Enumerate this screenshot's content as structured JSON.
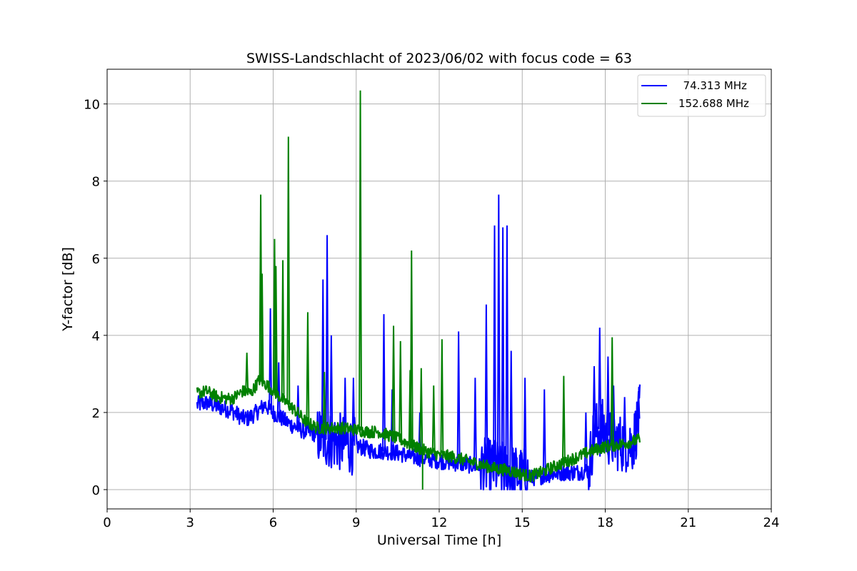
{
  "chart_data": {
    "type": "line",
    "title": "SWISS-Landschlacht of 2023/06/02 with focus code = 63",
    "xlabel": "Universal Time [h]",
    "ylabel": "Y-factor [dB]",
    "xlim": [
      0,
      24
    ],
    "ylim": [
      -0.5,
      10.9
    ],
    "xticks": [
      0,
      3,
      6,
      9,
      12,
      15,
      18,
      21,
      24
    ],
    "xtick_labels": [
      "0",
      "3",
      "6",
      "9",
      "12",
      "15",
      "18",
      "21",
      "24"
    ],
    "yticks": [
      0,
      2,
      4,
      6,
      8,
      10
    ],
    "ytick_labels": [
      "0",
      "2",
      "4",
      "6",
      "8",
      "10"
    ],
    "grid": true,
    "legend_position": "top-right",
    "series": [
      {
        "name": "  74.313 MHz",
        "color": "#0000ff",
        "x": [
          3.25,
          3.6,
          4.0,
          4.5,
          4.9,
          5.1,
          5.4,
          5.7,
          6.0,
          6.3,
          6.6,
          7.0,
          7.5,
          7.9,
          8.3,
          8.8,
          9.2,
          9.6,
          10.0,
          10.5,
          11.0,
          11.5,
          12.0,
          12.5,
          13.0,
          13.5,
          14.0,
          14.5,
          15.0,
          15.3,
          15.7,
          16.0,
          16.5,
          17.0,
          17.4,
          17.6,
          17.9,
          18.2,
          18.6,
          19.0,
          19.25
        ],
        "y": [
          2.2,
          2.25,
          2.15,
          2.05,
          1.85,
          1.85,
          2.0,
          2.2,
          2.0,
          1.85,
          1.7,
          1.55,
          1.45,
          1.3,
          1.25,
          1.15,
          1.1,
          1.0,
          1.0,
          0.95,
          0.85,
          0.8,
          0.75,
          0.7,
          0.65,
          0.6,
          0.55,
          0.45,
          0.35,
          0.3,
          0.35,
          0.4,
          0.45,
          0.45,
          0.5,
          1.5,
          1.6,
          1.3,
          1.2,
          1.2,
          2.0
        ],
        "spikes": [
          {
            "x": 5.9,
            "y": 4.7
          },
          {
            "x": 6.2,
            "y": 3.3
          },
          {
            "x": 6.9,
            "y": 2.7
          },
          {
            "x": 7.8,
            "y": 5.45
          },
          {
            "x": 7.95,
            "y": 6.6
          },
          {
            "x": 8.1,
            "y": 4.0
          },
          {
            "x": 8.6,
            "y": 2.9
          },
          {
            "x": 8.9,
            "y": 2.9
          },
          {
            "x": 10.0,
            "y": 4.55
          },
          {
            "x": 10.3,
            "y": 2.6
          },
          {
            "x": 11.3,
            "y": 2.0
          },
          {
            "x": 12.7,
            "y": 4.1
          },
          {
            "x": 13.3,
            "y": 2.9
          },
          {
            "x": 13.7,
            "y": 4.8
          },
          {
            "x": 14.0,
            "y": 6.85
          },
          {
            "x": 14.15,
            "y": 7.65
          },
          {
            "x": 14.3,
            "y": 6.8
          },
          {
            "x": 14.45,
            "y": 6.85
          },
          {
            "x": 14.6,
            "y": 3.6
          },
          {
            "x": 15.1,
            "y": 2.9
          },
          {
            "x": 15.8,
            "y": 2.6
          },
          {
            "x": 17.3,
            "y": 2.0
          },
          {
            "x": 17.6,
            "y": 3.2
          },
          {
            "x": 17.8,
            "y": 4.2
          },
          {
            "x": 18.1,
            "y": 3.45
          },
          {
            "x": 18.3,
            "y": 2.7
          },
          {
            "x": 18.7,
            "y": 2.4
          },
          {
            "x": 19.2,
            "y": 2.55
          }
        ]
      },
      {
        "name": "152.688 MHz",
        "color": "#008000",
        "x": [
          3.25,
          3.6,
          4.0,
          4.5,
          4.9,
          5.2,
          5.5,
          5.8,
          6.1,
          6.4,
          6.8,
          7.2,
          7.6,
          8.0,
          8.5,
          9.0,
          9.4,
          9.8,
          10.2,
          10.6,
          11.0,
          11.5,
          12.0,
          12.5,
          13.0,
          13.5,
          14.0,
          14.5,
          15.0,
          15.3,
          15.7,
          16.0,
          16.5,
          17.0,
          17.5,
          17.9,
          18.3,
          18.7,
          19.25
        ],
        "y": [
          2.5,
          2.55,
          2.4,
          2.35,
          2.55,
          2.5,
          2.85,
          2.7,
          2.5,
          2.3,
          2.05,
          1.75,
          1.6,
          1.6,
          1.6,
          1.55,
          1.5,
          1.5,
          1.4,
          1.3,
          1.15,
          1.0,
          0.9,
          0.85,
          0.75,
          0.65,
          0.55,
          0.5,
          0.4,
          0.35,
          0.45,
          0.55,
          0.7,
          0.85,
          1.0,
          1.1,
          1.15,
          1.2,
          1.3
        ],
        "spikes": [
          {
            "x": 5.05,
            "y": 3.55
          },
          {
            "x": 5.55,
            "y": 7.65
          },
          {
            "x": 5.6,
            "y": 5.6
          },
          {
            "x": 6.05,
            "y": 6.5
          },
          {
            "x": 6.1,
            "y": 5.8
          },
          {
            "x": 6.35,
            "y": 5.95
          },
          {
            "x": 6.55,
            "y": 9.15
          },
          {
            "x": 7.25,
            "y": 4.6
          },
          {
            "x": 7.85,
            "y": 3.05
          },
          {
            "x": 9.15,
            "y": 10.35
          },
          {
            "x": 10.35,
            "y": 4.25
          },
          {
            "x": 10.6,
            "y": 3.85
          },
          {
            "x": 10.95,
            "y": 3.1
          },
          {
            "x": 11.0,
            "y": 6.2
          },
          {
            "x": 11.35,
            "y": 3.15
          },
          {
            "x": 11.8,
            "y": 2.7
          },
          {
            "x": 12.1,
            "y": 3.9
          },
          {
            "x": 16.5,
            "y": 2.95
          },
          {
            "x": 18.25,
            "y": 3.95
          }
        ],
        "dips": [
          {
            "x": 11.4,
            "y": 0.0
          }
        ]
      }
    ]
  }
}
